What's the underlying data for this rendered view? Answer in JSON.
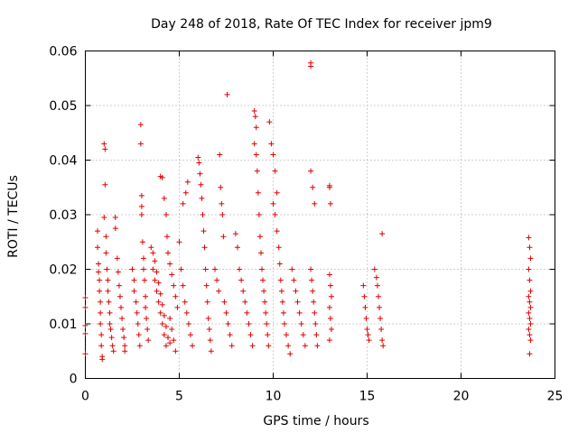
{
  "chart_data": {
    "type": "scatter",
    "title": "Day 248 of 2018, Rate Of TEC Index for receiver jpm9",
    "xlabel": "GPS time / hours",
    "ylabel": "ROTI / TECUs",
    "xlim": [
      0,
      25
    ],
    "ylim": [
      0,
      0.06
    ],
    "x_ticks": [
      "0",
      "5",
      "10",
      "15",
      "20",
      "25"
    ],
    "y_ticks": [
      "0",
      "0.01",
      "0.02",
      "0.03",
      "0.04",
      "0.05",
      "0.06"
    ],
    "grid": true,
    "marker": "+",
    "series_color": "#e00000",
    "series": [
      {
        "points": [
          [
            0.0,
            0.0148
          ],
          [
            0.0,
            0.013
          ],
          [
            0.0,
            0.0097
          ],
          [
            0.0,
            0.0082
          ],
          [
            0.0,
            0.0045
          ],
          [
            0.65,
            0.027
          ],
          [
            0.65,
            0.024
          ],
          [
            0.7,
            0.021
          ],
          [
            0.7,
            0.0195
          ],
          [
            0.75,
            0.018
          ],
          [
            0.75,
            0.016
          ],
          [
            0.8,
            0.014
          ],
          [
            0.8,
            0.012
          ],
          [
            0.8,
            0.01
          ],
          [
            0.85,
            0.008
          ],
          [
            0.85,
            0.006
          ],
          [
            0.9,
            0.004
          ],
          [
            0.9,
            0.0035
          ],
          [
            1.0,
            0.043
          ],
          [
            1.05,
            0.042
          ],
          [
            1.05,
            0.0355
          ],
          [
            1.0,
            0.0295
          ],
          [
            1.1,
            0.026
          ],
          [
            1.1,
            0.023
          ],
          [
            1.15,
            0.02
          ],
          [
            1.2,
            0.018
          ],
          [
            1.2,
            0.016
          ],
          [
            1.25,
            0.014
          ],
          [
            1.3,
            0.012
          ],
          [
            1.3,
            0.01
          ],
          [
            1.35,
            0.009
          ],
          [
            1.4,
            0.0075
          ],
          [
            1.45,
            0.006
          ],
          [
            1.5,
            0.005
          ],
          [
            1.6,
            0.0295
          ],
          [
            1.6,
            0.0275
          ],
          [
            1.7,
            0.022
          ],
          [
            1.75,
            0.0195
          ],
          [
            1.8,
            0.017
          ],
          [
            1.85,
            0.015
          ],
          [
            1.9,
            0.013
          ],
          [
            1.95,
            0.011
          ],
          [
            2.0,
            0.009
          ],
          [
            2.05,
            0.0075
          ],
          [
            2.1,
            0.006
          ],
          [
            2.1,
            0.005
          ],
          [
            2.5,
            0.02
          ],
          [
            2.6,
            0.018
          ],
          [
            2.7,
            0.014
          ],
          [
            2.75,
            0.012
          ],
          [
            2.8,
            0.01
          ],
          [
            2.85,
            0.008
          ],
          [
            2.6,
            0.016
          ],
          [
            2.9,
            0.006
          ],
          [
            2.95,
            0.0465
          ],
          [
            2.95,
            0.043
          ],
          [
            3.0,
            0.0335
          ],
          [
            3.0,
            0.0315
          ],
          [
            3.0,
            0.03
          ],
          [
            3.05,
            0.025
          ],
          [
            3.1,
            0.022
          ],
          [
            3.1,
            0.02
          ],
          [
            3.15,
            0.018
          ],
          [
            3.2,
            0.015
          ],
          [
            3.2,
            0.013
          ],
          [
            3.25,
            0.011
          ],
          [
            3.3,
            0.009
          ],
          [
            3.35,
            0.007
          ],
          [
            3.5,
            0.024
          ],
          [
            3.6,
            0.02
          ],
          [
            3.7,
            0.018
          ],
          [
            3.8,
            0.016
          ],
          [
            3.9,
            0.014
          ],
          [
            4.0,
            0.012
          ],
          [
            4.1,
            0.01
          ],
          [
            4.2,
            0.008
          ],
          [
            4.3,
            0.006
          ],
          [
            4.0,
            0.037
          ],
          [
            4.1,
            0.0368
          ],
          [
            4.2,
            0.033
          ],
          [
            4.3,
            0.03
          ],
          [
            4.35,
            0.026
          ],
          [
            4.4,
            0.023
          ],
          [
            4.5,
            0.021
          ],
          [
            4.6,
            0.019
          ],
          [
            4.7,
            0.017
          ],
          [
            4.8,
            0.015
          ],
          [
            4.9,
            0.013
          ],
          [
            4.5,
            0.011
          ],
          [
            4.6,
            0.009
          ],
          [
            4.7,
            0.007
          ],
          [
            4.8,
            0.005
          ],
          [
            3.6,
            0.023
          ],
          [
            3.7,
            0.0215
          ],
          [
            3.8,
            0.0195
          ],
          [
            3.9,
            0.0175
          ],
          [
            4.0,
            0.0155
          ],
          [
            4.1,
            0.0135
          ],
          [
            4.2,
            0.0115
          ],
          [
            4.3,
            0.0095
          ],
          [
            4.4,
            0.0075
          ],
          [
            4.5,
            0.0065
          ],
          [
            5.0,
            0.025
          ],
          [
            5.1,
            0.02
          ],
          [
            5.2,
            0.017
          ],
          [
            5.3,
            0.014
          ],
          [
            5.4,
            0.012
          ],
          [
            5.5,
            0.01
          ],
          [
            5.6,
            0.008
          ],
          [
            5.7,
            0.006
          ],
          [
            5.2,
            0.032
          ],
          [
            5.35,
            0.034
          ],
          [
            5.45,
            0.036
          ],
          [
            6.0,
            0.0405
          ],
          [
            6.05,
            0.0395
          ],
          [
            6.1,
            0.0375
          ],
          [
            6.15,
            0.0355
          ],
          [
            6.2,
            0.033
          ],
          [
            6.25,
            0.03
          ],
          [
            6.3,
            0.027
          ],
          [
            6.35,
            0.024
          ],
          [
            6.4,
            0.02
          ],
          [
            6.45,
            0.017
          ],
          [
            6.5,
            0.014
          ],
          [
            6.55,
            0.011
          ],
          [
            6.6,
            0.009
          ],
          [
            6.65,
            0.007
          ],
          [
            6.7,
            0.005
          ],
          [
            6.9,
            0.02
          ],
          [
            7.0,
            0.018
          ],
          [
            7.1,
            0.016
          ],
          [
            7.15,
            0.041
          ],
          [
            7.2,
            0.035
          ],
          [
            7.25,
            0.032
          ],
          [
            7.3,
            0.03
          ],
          [
            7.35,
            0.026
          ],
          [
            7.4,
            0.014
          ],
          [
            7.5,
            0.012
          ],
          [
            7.6,
            0.01
          ],
          [
            7.7,
            0.008
          ],
          [
            7.8,
            0.006
          ],
          [
            7.55,
            0.052
          ],
          [
            8.0,
            0.0265
          ],
          [
            8.1,
            0.024
          ],
          [
            8.2,
            0.02
          ],
          [
            8.3,
            0.018
          ],
          [
            8.4,
            0.016
          ],
          [
            8.5,
            0.014
          ],
          [
            8.6,
            0.012
          ],
          [
            8.7,
            0.01
          ],
          [
            8.8,
            0.008
          ],
          [
            8.9,
            0.006
          ],
          [
            9.0,
            0.049
          ],
          [
            9.05,
            0.048
          ],
          [
            9.1,
            0.046
          ],
          [
            9.0,
            0.043
          ],
          [
            9.1,
            0.041
          ],
          [
            9.15,
            0.038
          ],
          [
            9.2,
            0.034
          ],
          [
            9.25,
            0.03
          ],
          [
            9.3,
            0.026
          ],
          [
            9.35,
            0.023
          ],
          [
            9.4,
            0.02
          ],
          [
            9.45,
            0.018
          ],
          [
            9.5,
            0.016
          ],
          [
            9.55,
            0.014
          ],
          [
            9.6,
            0.012
          ],
          [
            9.65,
            0.01
          ],
          [
            9.7,
            0.008
          ],
          [
            9.75,
            0.006
          ],
          [
            9.8,
            0.047
          ],
          [
            9.9,
            0.043
          ],
          [
            10.0,
            0.041
          ],
          [
            10.1,
            0.038
          ],
          [
            10.2,
            0.034
          ],
          [
            10.0,
            0.032
          ],
          [
            10.1,
            0.03
          ],
          [
            10.2,
            0.027
          ],
          [
            10.3,
            0.024
          ],
          [
            10.35,
            0.021
          ],
          [
            10.4,
            0.018
          ],
          [
            10.45,
            0.016
          ],
          [
            10.5,
            0.014
          ],
          [
            10.55,
            0.012
          ],
          [
            10.6,
            0.01
          ],
          [
            10.7,
            0.008
          ],
          [
            10.8,
            0.006
          ],
          [
            10.9,
            0.0045
          ],
          [
            11.0,
            0.02
          ],
          [
            11.1,
            0.018
          ],
          [
            11.2,
            0.016
          ],
          [
            11.3,
            0.014
          ],
          [
            11.4,
            0.012
          ],
          [
            11.5,
            0.01
          ],
          [
            11.6,
            0.008
          ],
          [
            11.7,
            0.006
          ],
          [
            12.0,
            0.0578
          ],
          [
            12.0,
            0.0572
          ],
          [
            12.0,
            0.038
          ],
          [
            12.1,
            0.035
          ],
          [
            12.2,
            0.032
          ],
          [
            12.0,
            0.02
          ],
          [
            12.05,
            0.018
          ],
          [
            12.1,
            0.016
          ],
          [
            12.15,
            0.014
          ],
          [
            12.2,
            0.012
          ],
          [
            12.25,
            0.01
          ],
          [
            12.3,
            0.008
          ],
          [
            12.35,
            0.006
          ],
          [
            13.0,
            0.0353
          ],
          [
            13.0,
            0.035
          ],
          [
            13.05,
            0.032
          ],
          [
            13.0,
            0.019
          ],
          [
            13.05,
            0.017
          ],
          [
            13.1,
            0.015
          ],
          [
            13.0,
            0.013
          ],
          [
            13.05,
            0.011
          ],
          [
            13.1,
            0.009
          ],
          [
            13.0,
            0.007
          ],
          [
            14.8,
            0.017
          ],
          [
            14.85,
            0.015
          ],
          [
            14.9,
            0.013
          ],
          [
            14.95,
            0.011
          ],
          [
            15.0,
            0.009
          ],
          [
            15.05,
            0.008
          ],
          [
            15.1,
            0.007
          ],
          [
            15.4,
            0.02
          ],
          [
            15.5,
            0.0185
          ],
          [
            15.55,
            0.017
          ],
          [
            15.6,
            0.015
          ],
          [
            15.65,
            0.013
          ],
          [
            15.7,
            0.011
          ],
          [
            15.75,
            0.009
          ],
          [
            15.8,
            0.0265
          ],
          [
            15.8,
            0.007
          ],
          [
            15.85,
            0.006
          ],
          [
            23.6,
            0.0258
          ],
          [
            23.65,
            0.024
          ],
          [
            23.7,
            0.022
          ],
          [
            23.6,
            0.02
          ],
          [
            23.65,
            0.018
          ],
          [
            23.7,
            0.016
          ],
          [
            23.6,
            0.015
          ],
          [
            23.65,
            0.014
          ],
          [
            23.7,
            0.013
          ],
          [
            23.6,
            0.012
          ],
          [
            23.65,
            0.011
          ],
          [
            23.7,
            0.01
          ],
          [
            23.6,
            0.009
          ],
          [
            23.65,
            0.008
          ],
          [
            23.7,
            0.007
          ],
          [
            23.65,
            0.0045
          ]
        ]
      }
    ]
  }
}
